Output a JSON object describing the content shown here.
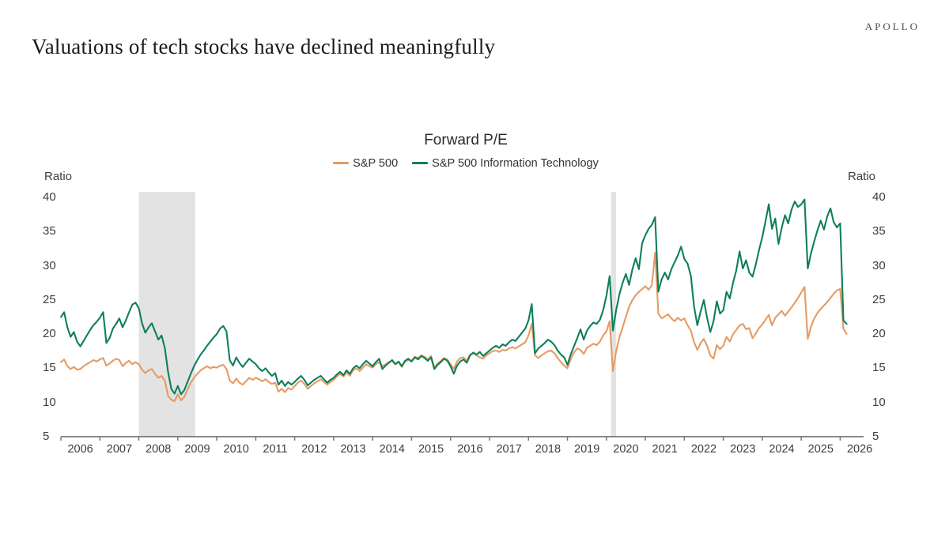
{
  "brand": {
    "logo_text": "APOLLO"
  },
  "heading": "Valuations of tech stocks have declined meaningfully",
  "axis": {
    "left_title": "Ratio",
    "right_title": "Ratio"
  },
  "chart_data": {
    "type": "line",
    "title": "Forward P/E",
    "xlabel": "",
    "ylabel": "Ratio",
    "ylim": [
      5,
      40
    ],
    "yticks": [
      40,
      35,
      30,
      25,
      20,
      15,
      10,
      5
    ],
    "xtick_labels": [
      "2006",
      "2007",
      "2008",
      "2009",
      "2010",
      "2011",
      "2012",
      "2013",
      "2014",
      "2015",
      "2016",
      "2017",
      "2018",
      "2019",
      "2020",
      "2021",
      "2022",
      "2023",
      "2024",
      "2025",
      "2026"
    ],
    "xlim": [
      2006.0,
      2026.6
    ],
    "x_start": 2006.0,
    "x_step_years": 0.0833333,
    "grid": false,
    "legend_position": "top-center",
    "shaded_periods": [
      {
        "from": 2008.0,
        "to": 2009.45
      },
      {
        "from": 2020.12,
        "to": 2020.25
      }
    ],
    "shading_color": "#E3E3E3",
    "axis_color": "#777777",
    "series": [
      {
        "name": "S&P 500",
        "color": "#E59B63",
        "values": [
          15.9,
          16.3,
          15.3,
          14.9,
          15.2,
          14.8,
          14.9,
          15.3,
          15.6,
          15.9,
          16.2,
          16.0,
          16.3,
          16.5,
          15.4,
          15.7,
          16.1,
          16.4,
          16.2,
          15.3,
          15.8,
          16.1,
          15.6,
          15.9,
          15.6,
          14.8,
          14.3,
          14.7,
          14.9,
          14.2,
          13.6,
          13.9,
          13.2,
          11.0,
          10.4,
          10.2,
          11.2,
          10.3,
          10.8,
          11.9,
          12.9,
          13.6,
          14.2,
          14.7,
          15.0,
          15.3,
          15.0,
          15.2,
          15.1,
          15.4,
          15.5,
          14.9,
          13.2,
          12.8,
          13.5,
          12.9,
          12.6,
          13.1,
          13.6,
          13.3,
          13.6,
          13.4,
          13.1,
          13.4,
          13.0,
          12.7,
          12.9,
          11.6,
          12.0,
          11.5,
          12.1,
          11.9,
          12.4,
          12.9,
          13.2,
          12.7,
          12.0,
          12.4,
          12.8,
          13.1,
          13.4,
          13.0,
          12.6,
          13.0,
          13.3,
          13.8,
          14.2,
          13.8,
          14.4,
          13.9,
          14.7,
          15.0,
          14.6,
          15.1,
          15.6,
          15.3,
          15.1,
          15.6,
          15.9,
          15.3,
          15.6,
          15.9,
          16.1,
          15.6,
          15.9,
          15.2,
          16.0,
          16.2,
          16.1,
          16.7,
          16.5,
          16.9,
          16.7,
          16.3,
          16.8,
          15.1,
          15.7,
          16.1,
          16.5,
          16.3,
          15.6,
          14.9,
          16.0,
          16.5,
          16.6,
          16.1,
          17.0,
          17.2,
          16.9,
          16.6,
          16.4,
          16.9,
          17.2,
          17.5,
          17.6,
          17.4,
          17.7,
          17.6,
          17.9,
          18.1,
          17.9,
          18.2,
          18.5,
          18.8,
          19.8,
          21.5,
          16.9,
          16.5,
          16.9,
          17.2,
          17.5,
          17.6,
          17.2,
          16.5,
          15.9,
          15.4,
          15.0,
          16.3,
          17.3,
          17.9,
          17.7,
          17.1,
          18.0,
          18.3,
          18.6,
          18.4,
          18.9,
          19.8,
          20.4,
          21.9,
          14.6,
          17.5,
          19.5,
          21.0,
          22.5,
          24.0,
          25.0,
          25.7,
          26.2,
          26.6,
          27.0,
          26.5,
          27.2,
          31.9,
          23.0,
          22.3,
          22.6,
          22.9,
          22.3,
          21.9,
          22.4,
          22.0,
          22.3,
          21.3,
          20.5,
          18.8,
          17.7,
          18.7,
          19.3,
          18.3,
          16.9,
          16.4,
          18.4,
          17.8,
          18.3,
          19.6,
          18.9,
          20.0,
          20.6,
          21.3,
          21.5,
          20.7,
          20.9,
          19.4,
          20.1,
          20.9,
          21.4,
          22.1,
          22.8,
          21.3,
          22.4,
          22.9,
          23.4,
          22.7,
          23.3,
          23.9,
          24.6,
          25.3,
          26.1,
          26.9,
          19.3,
          21.1,
          22.3,
          23.1,
          23.7,
          24.2,
          24.7,
          25.3,
          25.9,
          26.4,
          26.6,
          20.8,
          20.0
        ]
      },
      {
        "name": "S&P 500 Information Technology",
        "color": "#0E7F5B",
        "values": [
          22.5,
          23.2,
          21.0,
          19.6,
          20.3,
          18.9,
          18.2,
          19.0,
          19.8,
          20.6,
          21.3,
          21.8,
          22.4,
          23.2,
          18.7,
          19.4,
          20.8,
          21.5,
          22.3,
          21.0,
          22.0,
          23.2,
          24.3,
          24.6,
          23.8,
          21.6,
          20.2,
          21.0,
          21.6,
          20.4,
          19.2,
          19.8,
          18.0,
          14.5,
          12.0,
          11.3,
          12.4,
          11.2,
          11.8,
          13.0,
          14.2,
          15.3,
          16.2,
          17.0,
          17.6,
          18.3,
          18.9,
          19.5,
          20.0,
          20.8,
          21.2,
          20.4,
          16.2,
          15.4,
          16.6,
          15.8,
          15.2,
          15.8,
          16.4,
          16.0,
          15.6,
          15.0,
          14.6,
          15.0,
          14.4,
          13.9,
          14.3,
          12.6,
          13.2,
          12.4,
          13.0,
          12.6,
          13.0,
          13.5,
          13.9,
          13.3,
          12.5,
          12.9,
          13.3,
          13.6,
          13.9,
          13.4,
          12.9,
          13.3,
          13.6,
          14.1,
          14.5,
          14.0,
          14.7,
          14.2,
          15.0,
          15.4,
          15.0,
          15.6,
          16.1,
          15.7,
          15.3,
          15.9,
          16.4,
          14.9,
          15.4,
          15.8,
          16.2,
          15.6,
          16.0,
          15.3,
          16.1,
          16.4,
          16.0,
          16.6,
          16.3,
          16.8,
          16.5,
          16.1,
          16.6,
          14.9,
          15.5,
          15.9,
          16.4,
          16.1,
          15.3,
          14.2,
          15.4,
          16.0,
          16.3,
          15.8,
          16.9,
          17.3,
          17.0,
          17.4,
          16.8,
          17.2,
          17.6,
          18.0,
          18.3,
          18.0,
          18.5,
          18.3,
          18.8,
          19.2,
          19.0,
          19.6,
          20.2,
          20.8,
          22.0,
          24.4,
          17.2,
          17.9,
          18.3,
          18.7,
          19.2,
          18.9,
          18.4,
          17.6,
          17.0,
          16.6,
          15.5,
          17.0,
          18.2,
          19.4,
          20.7,
          19.2,
          20.5,
          21.2,
          21.7,
          21.5,
          22.1,
          23.5,
          25.6,
          28.5,
          20.5,
          23.5,
          25.8,
          27.5,
          28.8,
          27.2,
          29.5,
          31.1,
          29.5,
          33.3,
          34.5,
          35.4,
          36.0,
          37.1,
          26.2,
          28.0,
          29.0,
          28.0,
          29.5,
          30.5,
          31.5,
          32.8,
          31.0,
          30.3,
          28.5,
          24.0,
          21.3,
          23.3,
          25.0,
          22.4,
          20.3,
          21.9,
          24.8,
          23.0,
          23.5,
          26.2,
          25.2,
          27.5,
          29.3,
          32.1,
          29.6,
          30.8,
          29.0,
          28.4,
          30.2,
          32.3,
          34.2,
          36.5,
          39.0,
          35.4,
          36.9,
          33.2,
          35.6,
          37.4,
          36.2,
          38.2,
          39.4,
          38.6,
          39.0,
          39.7,
          29.6,
          31.8,
          33.6,
          35.2,
          36.6,
          35.3,
          37.2,
          38.4,
          36.4,
          35.6,
          36.2,
          22.0,
          21.5
        ]
      }
    ]
  }
}
